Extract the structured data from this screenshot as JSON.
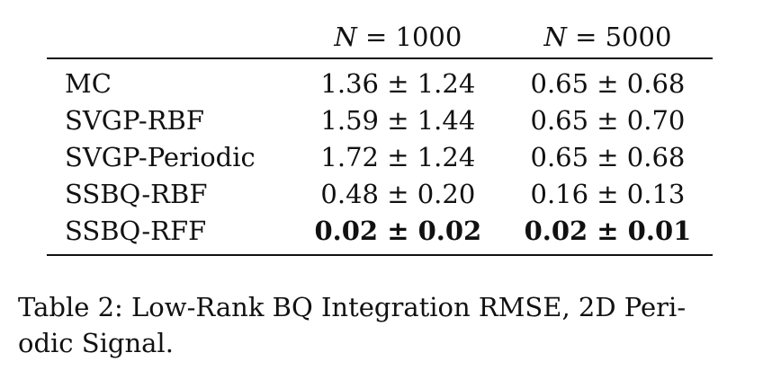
{
  "table": {
    "headers": [
      "",
      "N = 1000",
      "N = 5000"
    ],
    "header_parts": [
      {
        "var": "N",
        "op": "=",
        "value": "1000"
      },
      {
        "var": "N",
        "op": "=",
        "value": "5000"
      }
    ],
    "rows": [
      {
        "method": "MC",
        "n1000": "1.36 ± 1.24",
        "n5000": "0.65 ± 0.68",
        "bold": false
      },
      {
        "method": "SVGP-RBF",
        "n1000": "1.59 ± 1.44",
        "n5000": "0.65 ± 0.70",
        "bold": false
      },
      {
        "method": "SVGP-Periodic",
        "n1000": "1.72 ± 1.24",
        "n5000": "0.65 ± 0.68",
        "bold": false
      },
      {
        "method": "SSBQ-RBF",
        "n1000": "0.48 ± 0.20",
        "n5000": "0.16 ± 0.13",
        "bold": false
      },
      {
        "method": "SSBQ-RFF",
        "n1000": "0.02 ± 0.02",
        "n5000": "0.02 ± 0.01",
        "bold": true
      }
    ]
  },
  "caption": {
    "line1": "Table 2:  Low-Rank BQ Integration RMSE, 2D Peri-",
    "line2": "odic Signal."
  }
}
